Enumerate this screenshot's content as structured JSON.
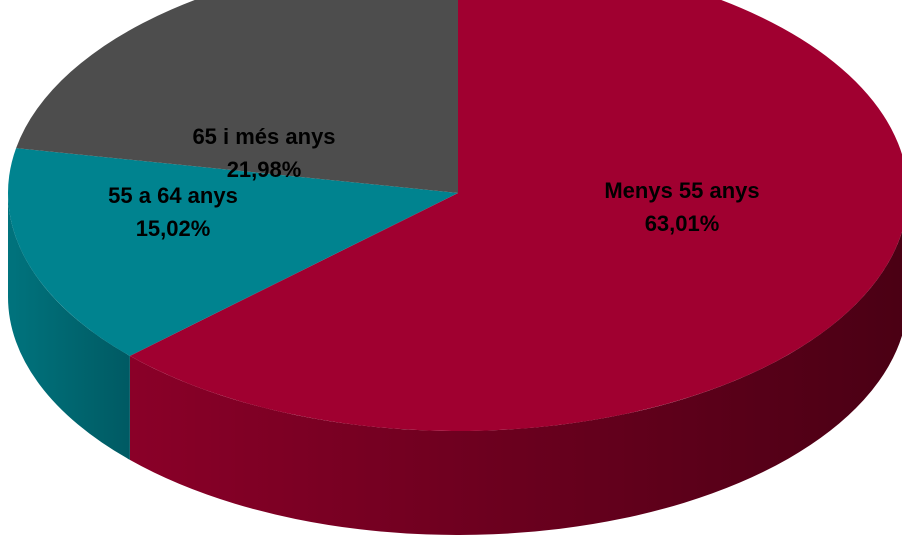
{
  "chart_data": {
    "type": "pie",
    "title": "",
    "slices": [
      {
        "label": "Menys 55 anys",
        "value": 63.01,
        "value_text": "63,01%",
        "color": "#A00030",
        "side_color_dark": "#4a0014",
        "side_color_light": "#8a0028"
      },
      {
        "label": "55 a 64 anys",
        "value": 15.02,
        "value_text": "15,02%",
        "color": "#00838F",
        "side_color_dark": "#005a63",
        "side_color_light": "#00737d"
      },
      {
        "label": "65 i més anys",
        "value": 21.98,
        "value_text": "21,98%",
        "color": "#4D4D4D",
        "side_color_dark": "#333333",
        "side_color_light": "#444444"
      }
    ],
    "legend": "none",
    "style": "3d-pie"
  }
}
